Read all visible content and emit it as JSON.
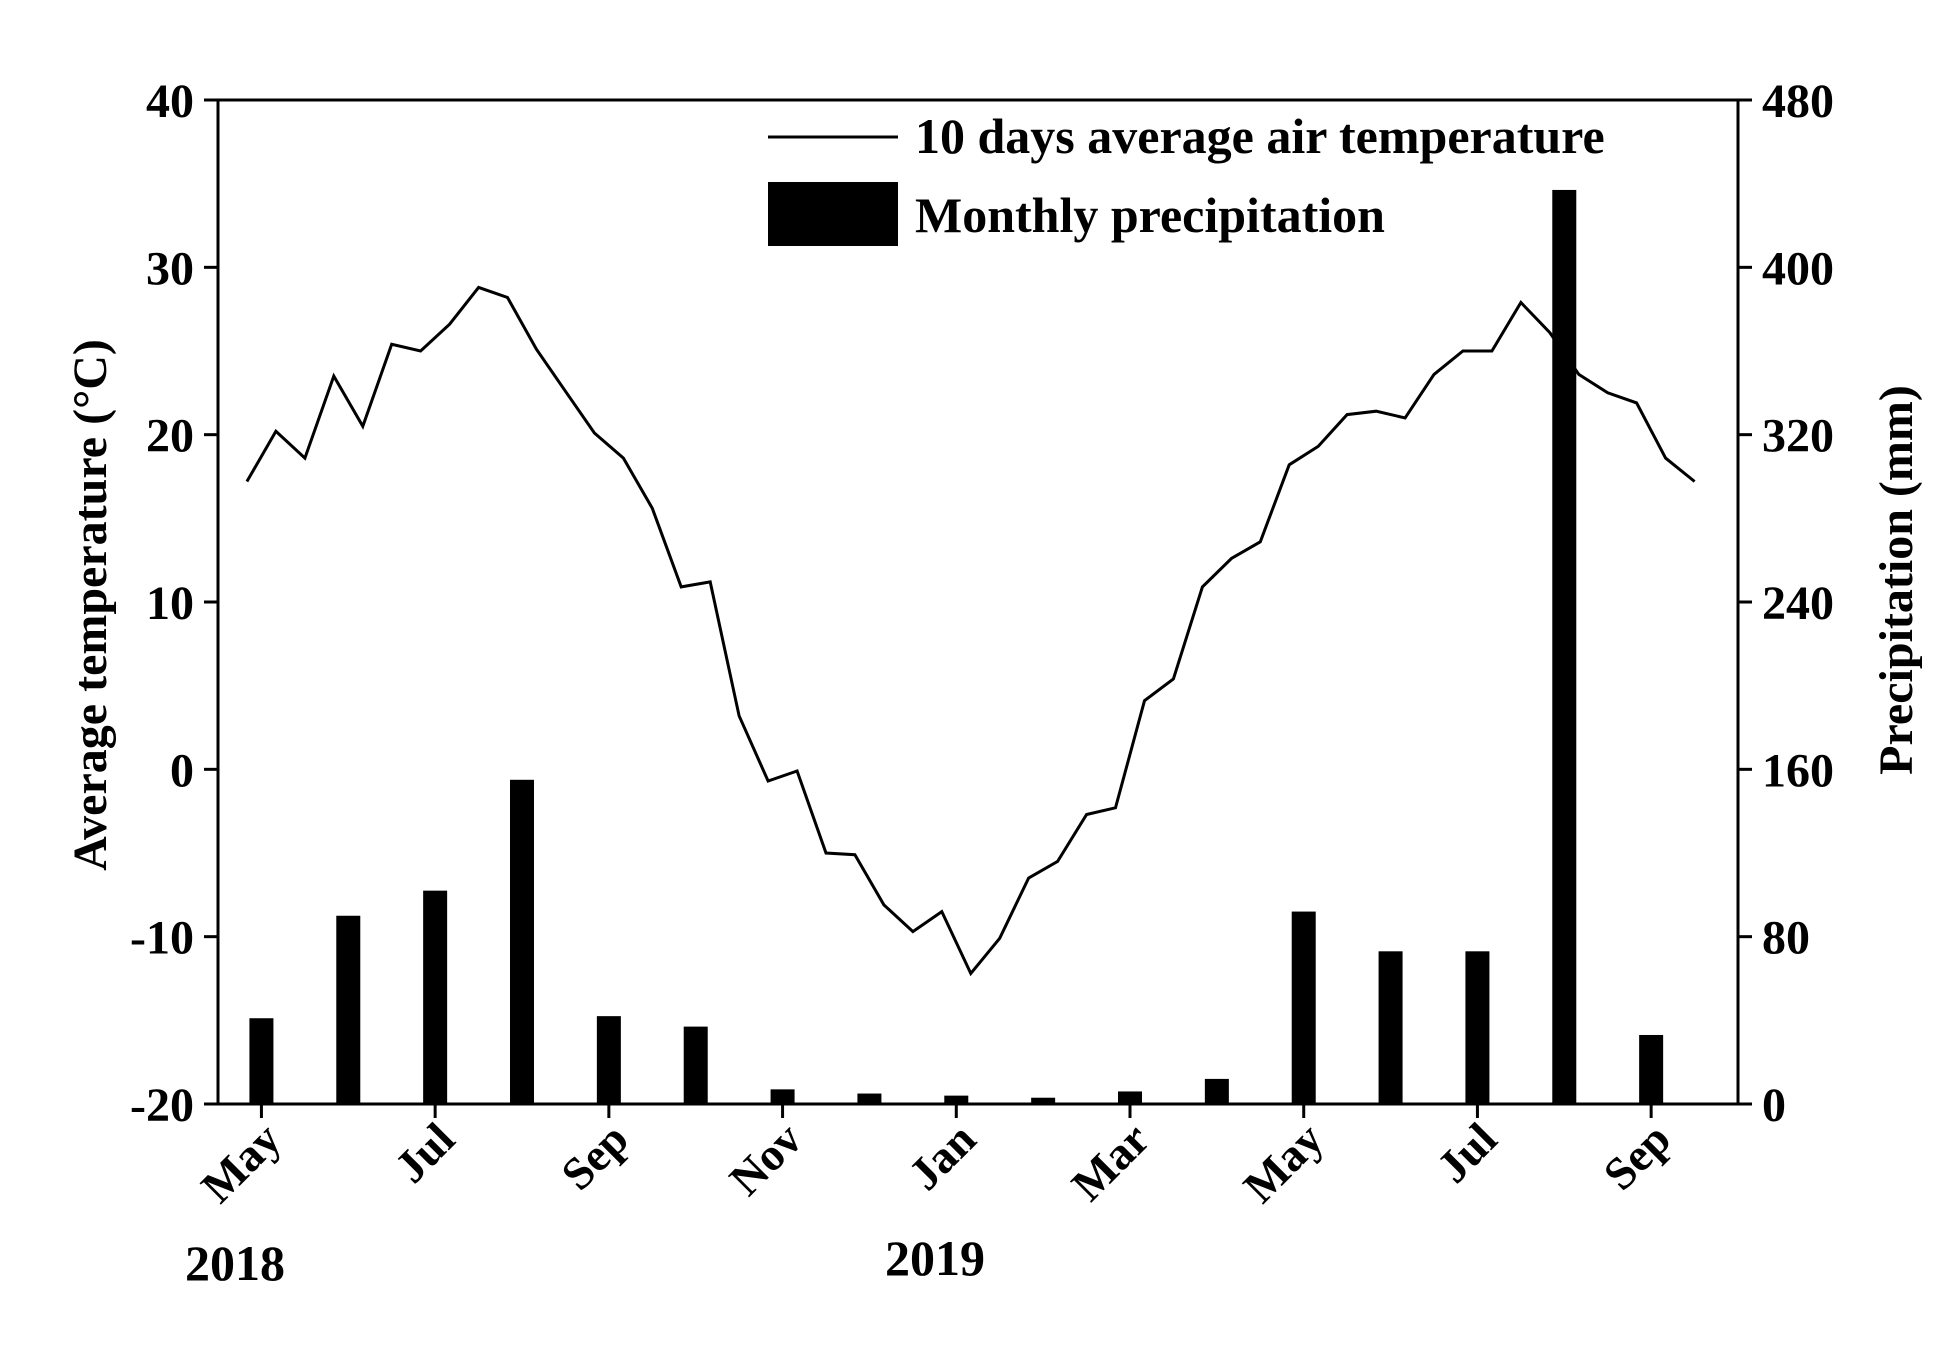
{
  "chart_data": {
    "type": "bar+line",
    "left_axis": {
      "label": "Average temperature (°C)",
      "range": [
        -20,
        40
      ],
      "ticks": [
        -20,
        -10,
        0,
        10,
        20,
        30,
        40
      ],
      "tick_labels": [
        "-20",
        "-10",
        "0",
        "10",
        "20",
        "30",
        "40"
      ]
    },
    "right_axis": {
      "label": "Precipitation (mm)",
      "range": [
        0,
        480
      ],
      "ticks": [
        0,
        80,
        160,
        240,
        320,
        400,
        480
      ],
      "tick_labels": [
        "0",
        "80",
        "160",
        "240",
        "320",
        "400",
        "480"
      ]
    },
    "x_axis": {
      "range": [
        0,
        17.5
      ],
      "month_ticks": [
        {
          "x": 0.5,
          "label": "May"
        },
        {
          "x": 2.5,
          "label": "Jul"
        },
        {
          "x": 4.5,
          "label": "Sep"
        },
        {
          "x": 6.5,
          "label": "Nov"
        },
        {
          "x": 8.5,
          "label": "Jan"
        },
        {
          "x": 10.5,
          "label": "Mar"
        },
        {
          "x": 12.5,
          "label": "May"
        },
        {
          "x": 14.5,
          "label": "Jul"
        },
        {
          "x": 16.5,
          "label": "Sep"
        }
      ],
      "year_labels": [
        "2018",
        "2019"
      ]
    },
    "series": [
      {
        "name": "10 days average air temperature",
        "type": "line",
        "axis": "left",
        "x": [
          0.333,
          0.667,
          1.0,
          1.333,
          1.667,
          2.0,
          2.333,
          2.667,
          3.0,
          3.333,
          3.667,
          4.0,
          4.333,
          4.667,
          5.0,
          5.333,
          5.667,
          6.0,
          6.333,
          6.667,
          7.0,
          7.333,
          7.667,
          8.0,
          8.333,
          8.667,
          9.0,
          9.333,
          9.667,
          10.0,
          10.333,
          10.667,
          11.0,
          11.333,
          11.667,
          12.0,
          12.333,
          12.667,
          13.0,
          13.333,
          13.667,
          14.0,
          14.333,
          14.667,
          15.0,
          15.333,
          15.667,
          16.0,
          16.333,
          16.667,
          17.0
        ],
        "values": [
          17.2,
          20.2,
          18.6,
          23.5,
          20.5,
          25.4,
          25.0,
          26.6,
          28.8,
          28.2,
          25.1,
          22.6,
          20.1,
          18.6,
          15.6,
          10.9,
          11.2,
          3.2,
          -0.7,
          -0.1,
          -5.0,
          -5.1,
          -8.1,
          -9.7,
          -8.5,
          -12.2,
          -10.1,
          -6.5,
          -5.5,
          -2.7,
          -2.3,
          4.1,
          5.4,
          10.9,
          12.6,
          13.6,
          18.2,
          19.3,
          21.2,
          21.4,
          21.0,
          23.6,
          25.0,
          25.0,
          27.9,
          26.1,
          23.6,
          22.5,
          21.9,
          18.6,
          17.2
        ]
      },
      {
        "name": "Monthly precipitation",
        "type": "bar",
        "axis": "right",
        "categories": [
          "May 2018",
          "Jun 2018",
          "Jul 2018",
          "Aug 2018",
          "Sep 2018",
          "Oct 2018",
          "Nov 2018",
          "Dec 2018",
          "Jan 2019",
          "Feb 2019",
          "Mar 2019",
          "Apr 2019",
          "May 2019",
          "Jun 2019",
          "Jul 2019",
          "Aug 2019",
          "Sep 2019"
        ],
        "x": [
          0.5,
          1.5,
          2.5,
          3.5,
          4.5,
          5.5,
          6.5,
          7.5,
          8.5,
          9.5,
          10.5,
          11.5,
          12.5,
          13.5,
          14.5,
          15.5,
          16.5
        ],
        "values": [
          41,
          90,
          102,
          155,
          42,
          37,
          7,
          5,
          4,
          3,
          6,
          12,
          92,
          73,
          73,
          437,
          33
        ]
      }
    ],
    "legend_position": "top-right",
    "grid": false
  }
}
